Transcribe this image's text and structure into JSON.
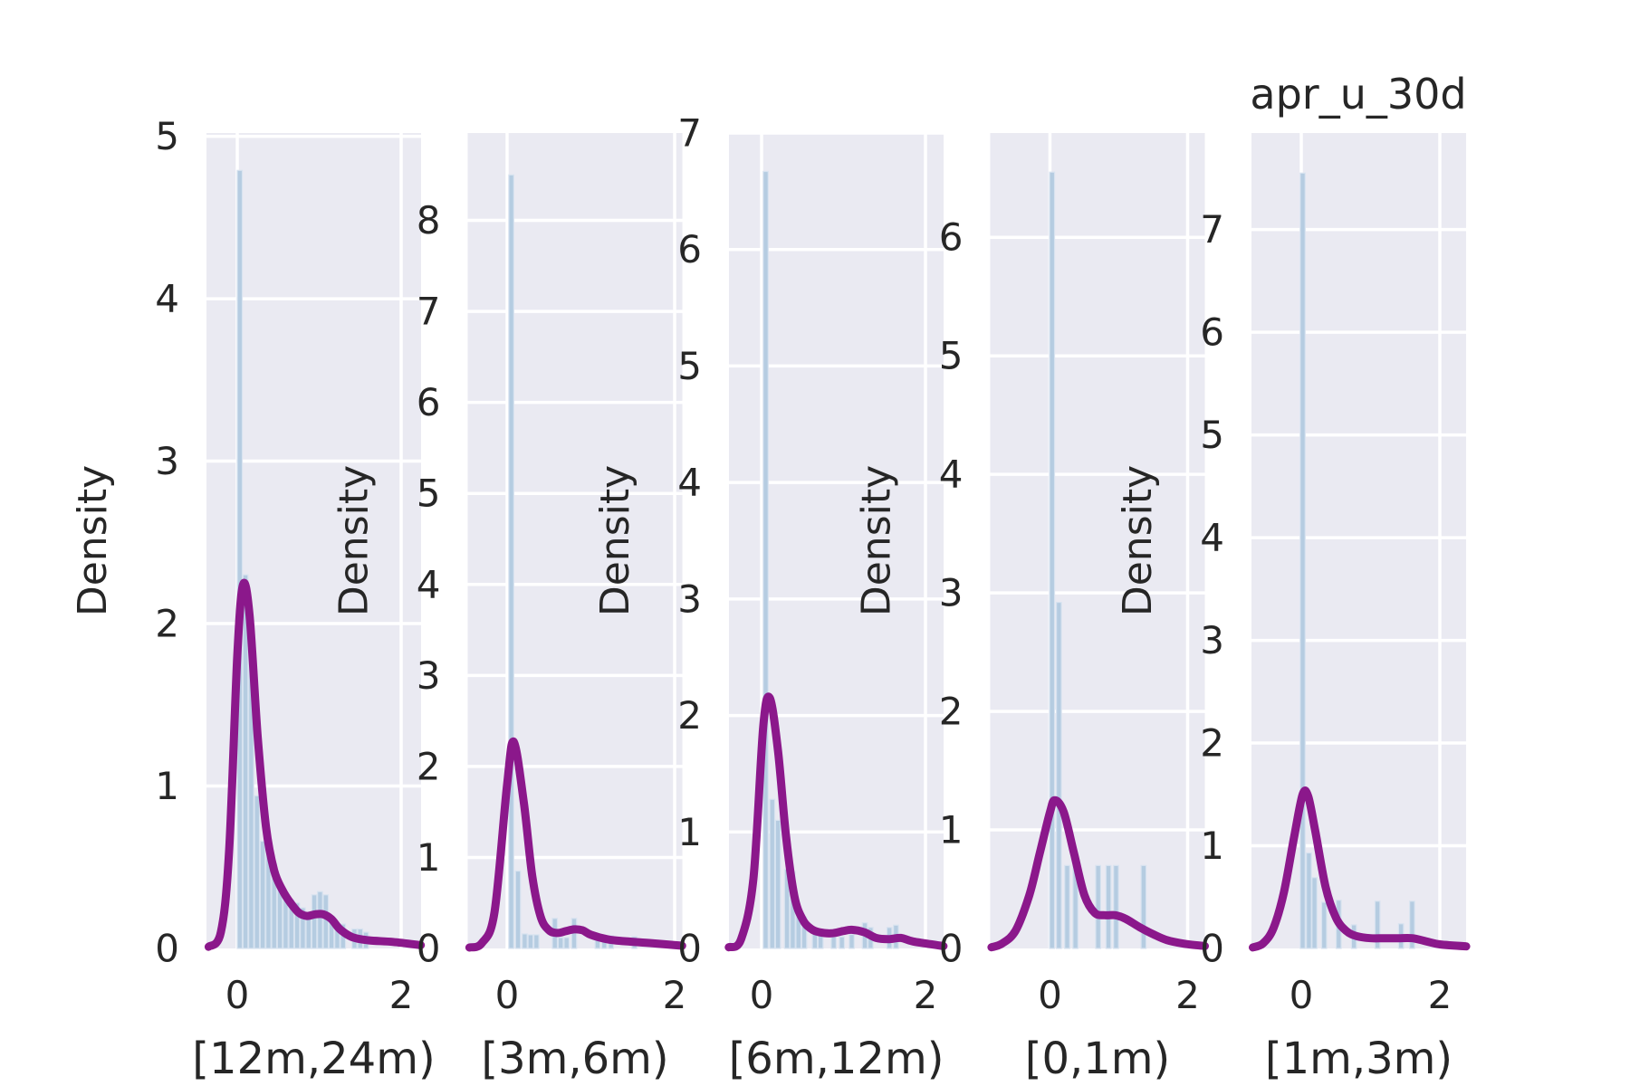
{
  "title": "apr_u_30d",
  "ylabel": "Density",
  "colors": {
    "figure_bg": "#ffffff",
    "axes_bg": "#eaeaf2",
    "grid": "#ffffff",
    "bar_fill": "#b5cce1",
    "bar_edge": "#d8e3f0",
    "kde_line": "#8b188b",
    "text": "#262626"
  },
  "chart_data": [
    {
      "type": "histogram+kde",
      "xlabel": "[12m,24m)",
      "ylabel": "Density",
      "xlim": [
        -0.376,
        2.243
      ],
      "ylim": [
        0,
        5.02
      ],
      "yticks": [
        0,
        1,
        2,
        3,
        4,
        5
      ],
      "xticks": [
        0,
        2
      ],
      "grid": true,
      "bars": {
        "x": [
          0.03,
          0.1,
          0.17,
          0.24,
          0.31,
          0.38,
          0.45,
          0.52,
          0.59,
          0.66,
          0.73,
          0.8,
          0.87,
          0.94,
          1.01,
          1.08,
          1.15,
          1.22,
          1.29,
          1.43,
          1.5,
          1.57
        ],
        "height": [
          4.79,
          2.3,
          1.93,
          0.94,
          0.66,
          0.64,
          0.52,
          0.39,
          0.34,
          0.3,
          0.28,
          0.25,
          0.22,
          0.33,
          0.35,
          0.33,
          0.2,
          0.15,
          0.15,
          0.12,
          0.12,
          0.1
        ]
      },
      "kde": {
        "x": [
          -0.35,
          -0.2,
          -0.1,
          0.0,
          0.07,
          0.15,
          0.25,
          0.35,
          0.45,
          0.55,
          0.65,
          0.75,
          0.85,
          0.95,
          1.05,
          1.15,
          1.25,
          1.4,
          1.6,
          1.9,
          2.24
        ],
        "y": [
          0.01,
          0.1,
          0.6,
          1.8,
          2.24,
          2.05,
          1.3,
          0.75,
          0.48,
          0.36,
          0.28,
          0.22,
          0.2,
          0.21,
          0.21,
          0.18,
          0.12,
          0.07,
          0.05,
          0.04,
          0.02
        ]
      }
    },
    {
      "type": "histogram+kde",
      "xlabel": "[3m,6m)",
      "ylabel": "Density",
      "xlim": [
        -0.47,
        2.092
      ],
      "ylim": [
        0,
        8.96
      ],
      "yticks": [
        0,
        1,
        2,
        3,
        4,
        5,
        6,
        7,
        8
      ],
      "xticks": [
        0,
        2
      ],
      "grid": true,
      "bars": {
        "x": [
          0.05,
          0.13,
          0.21,
          0.28,
          0.35,
          0.57,
          0.64,
          0.71,
          0.8,
          1.08,
          1.16,
          1.24,
          1.52
        ],
        "height": [
          8.5,
          0.85,
          0.16,
          0.15,
          0.15,
          0.33,
          0.12,
          0.12,
          0.33,
          0.14,
          0.14,
          0.14,
          0.13
        ]
      },
      "kde": {
        "x": [
          -0.45,
          -0.3,
          -0.15,
          0.0,
          0.08,
          0.2,
          0.3,
          0.4,
          0.5,
          0.6,
          0.7,
          0.8,
          0.9,
          1.0,
          1.2,
          1.4,
          1.7,
          2.09
        ],
        "y": [
          0.01,
          0.06,
          0.4,
          1.8,
          2.27,
          1.6,
          0.8,
          0.35,
          0.2,
          0.17,
          0.19,
          0.21,
          0.2,
          0.15,
          0.1,
          0.08,
          0.06,
          0.03
        ]
      }
    },
    {
      "type": "histogram+kde",
      "xlabel": "[6m,12m)",
      "ylabel": "Density",
      "xlim": [
        -0.398,
        2.221
      ],
      "ylim": [
        0,
        7.0
      ],
      "yticks": [
        0,
        1,
        2,
        3,
        4,
        5,
        6,
        7
      ],
      "xticks": [
        0,
        2
      ],
      "grid": true,
      "bars": {
        "x": [
          0.05,
          0.13,
          0.2,
          0.31,
          0.38,
          0.45,
          0.52,
          0.65,
          0.72,
          0.88,
          0.98,
          1.1,
          1.26,
          1.33,
          1.56,
          1.64
        ],
        "height": [
          6.67,
          1.28,
          1.1,
          0.68,
          0.66,
          0.32,
          0.27,
          0.15,
          0.15,
          0.1,
          0.1,
          0.12,
          0.22,
          0.18,
          0.18,
          0.2
        ]
      },
      "kde": {
        "x": [
          -0.4,
          -0.25,
          -0.1,
          0.02,
          0.1,
          0.2,
          0.3,
          0.4,
          0.5,
          0.6,
          0.7,
          0.85,
          1.0,
          1.1,
          1.25,
          1.4,
          1.55,
          1.7,
          1.85,
          2.22
        ],
        "y": [
          0.01,
          0.08,
          0.6,
          1.9,
          2.15,
          1.7,
          0.95,
          0.45,
          0.25,
          0.17,
          0.14,
          0.13,
          0.15,
          0.16,
          0.14,
          0.09,
          0.08,
          0.09,
          0.06,
          0.02
        ]
      }
    },
    {
      "type": "histogram+kde",
      "xlabel": "[0,1m)",
      "ylabel": "Density",
      "xlim": [
        -0.868,
        2.25
      ],
      "ylim": [
        0,
        6.88
      ],
      "yticks": [
        0,
        1,
        2,
        3,
        4,
        5,
        6
      ],
      "xticks": [
        0,
        2
      ],
      "grid": true,
      "bars": {
        "x": [
          0.03,
          0.13,
          0.25,
          0.37,
          0.7,
          0.85,
          0.96,
          1.36
        ],
        "height": [
          6.55,
          2.92,
          0.7,
          0.7,
          0.7,
          0.7,
          0.7,
          0.7
        ]
      },
      "kde": {
        "x": [
          -0.85,
          -0.7,
          -0.5,
          -0.3,
          -0.15,
          0.0,
          0.07,
          0.2,
          0.35,
          0.5,
          0.65,
          0.8,
          0.95,
          1.1,
          1.3,
          1.5,
          1.7,
          1.95,
          2.25
        ],
        "y": [
          0.01,
          0.04,
          0.15,
          0.45,
          0.8,
          1.15,
          1.25,
          1.15,
          0.8,
          0.45,
          0.3,
          0.28,
          0.28,
          0.25,
          0.18,
          0.12,
          0.07,
          0.04,
          0.02
        ]
      }
    },
    {
      "type": "histogram+kde",
      "xlabel": "[1m,3m)",
      "ylabel": "Density",
      "xlim": [
        -0.719,
        2.379
      ],
      "ylim": [
        0,
        7.94
      ],
      "yticks": [
        0,
        1,
        2,
        3,
        4,
        5,
        6,
        7
      ],
      "xticks": [
        0,
        2
      ],
      "grid": true,
      "bars": {
        "x": [
          0.02,
          0.11,
          0.19,
          0.33,
          0.54,
          0.76,
          1.1,
          1.44,
          1.6
        ],
        "height": [
          7.55,
          0.93,
          0.69,
          0.45,
          0.47,
          0.23,
          0.46,
          0.24,
          0.46
        ]
      },
      "kde": {
        "x": [
          -0.7,
          -0.55,
          -0.4,
          -0.25,
          -0.1,
          0.02,
          0.1,
          0.2,
          0.35,
          0.5,
          0.65,
          0.8,
          1.0,
          1.2,
          1.4,
          1.6,
          1.8,
          2.0,
          2.38
        ],
        "y": [
          0.01,
          0.05,
          0.2,
          0.55,
          1.1,
          1.5,
          1.48,
          1.15,
          0.6,
          0.3,
          0.17,
          0.12,
          0.1,
          0.1,
          0.1,
          0.1,
          0.07,
          0.04,
          0.02
        ]
      }
    }
  ]
}
